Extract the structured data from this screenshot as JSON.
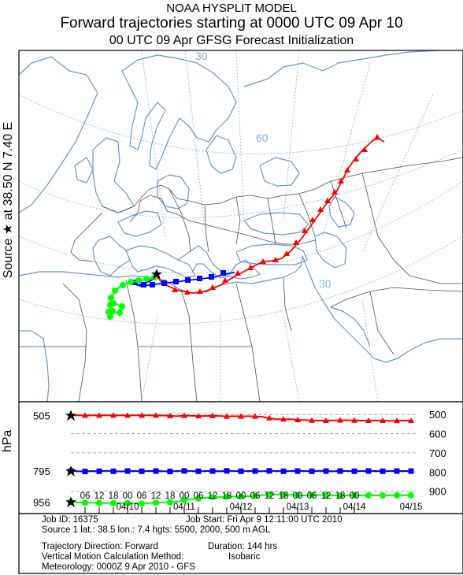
{
  "header": {
    "line1": "NOAA HYSPLIT MODEL",
    "line2": "Forward trajectories starting at 0000 UTC 09 Apr 10",
    "line3": "00 UTC 09 Apr    GFSG  Forecast Initialization"
  },
  "side_label": "Source ★ at   38.50 N    7.40 E",
  "hpa_label": "hPa",
  "map": {
    "lat_labels": [
      "30",
      "60",
      "30"
    ],
    "colors": {
      "coast": "#6a96cc",
      "border": "#505050",
      "grid": "#8ab0d8"
    }
  },
  "chart_data": {
    "type": "line",
    "x_tick_hours": [
      "06",
      "12",
      "18",
      "00",
      "06",
      "12",
      "18",
      "00",
      "06",
      "12",
      "18",
      "00",
      "06",
      "12",
      "18",
      "00",
      "06",
      "12",
      "18",
      "00"
    ],
    "x_date_labels": [
      "04/10",
      "04/11",
      "04/12",
      "04/13",
      "04/14",
      "04/15"
    ],
    "left_heights": [
      "505",
      "795",
      "956"
    ],
    "right_pressure_labels": [
      "500",
      "600",
      "700",
      "800",
      "900"
    ],
    "series": [
      {
        "color": "#ff0000",
        "marker": "triangle",
        "start_pressure_hpa": 505,
        "pressure_hpa": [
          505,
          505,
          505,
          505,
          505,
          505,
          505,
          505,
          505,
          505,
          505,
          505,
          505,
          506,
          507,
          509,
          506,
          507,
          508,
          508,
          507,
          508,
          510,
          509,
          510,
          509,
          510,
          512,
          519,
          525,
          525,
          525,
          528,
          529,
          531,
          532,
          532,
          531,
          530,
          530,
          531,
          532,
          532,
          531,
          532,
          533,
          533,
          532,
          532
        ]
      },
      {
        "color": "#0000ff",
        "marker": "square",
        "start_pressure_hpa": 795,
        "pressure_hpa": [
          795,
          796,
          797,
          795,
          796,
          794,
          796,
          797,
          795,
          795,
          796,
          795,
          795,
          796,
          797,
          795,
          794,
          795,
          796,
          795,
          795,
          796,
          794,
          795,
          796,
          795,
          795,
          796,
          794,
          795,
          796,
          795,
          795,
          795,
          796,
          794,
          795,
          796,
          795,
          795,
          796,
          795,
          795,
          795,
          796,
          795,
          795,
          795,
          795
        ]
      },
      {
        "color": "#00ff00",
        "marker": "circle",
        "start_pressure_hpa": 956,
        "pressure_hpa": [
          956,
          958,
          960,
          960,
          961,
          962,
          962,
          962,
          962,
          963,
          965,
          962,
          960,
          958,
          958,
          955,
          946,
          942,
          938,
          934,
          930,
          930,
          928,
          928,
          928,
          926,
          924,
          921,
          918,
          917,
          918,
          919,
          921,
          922,
          920,
          920,
          921,
          922,
          923,
          922,
          922,
          922,
          921,
          922,
          922,
          922,
          921,
          921,
          921
        ]
      }
    ],
    "ylim_hpa": [
      450,
      1000
    ]
  },
  "info": {
    "job_id": "Job ID: 16375",
    "job_start": "Job Start: Fri Apr  9 12:11:00 UTC 2010",
    "source": "Source 1 lat.: 38.5  lon.: 7.4  hgts: 5500, 2000, 500 m AGL",
    "direction": "Trajectory Direction: Forward",
    "duration": "Duration: 144 hrs",
    "vertical": "Vertical Motion Calculation Method:",
    "vertical_value": "Isobaric",
    "meteorology": "Meteorology: 0000Z  9 Apr 2010 - GFS"
  }
}
